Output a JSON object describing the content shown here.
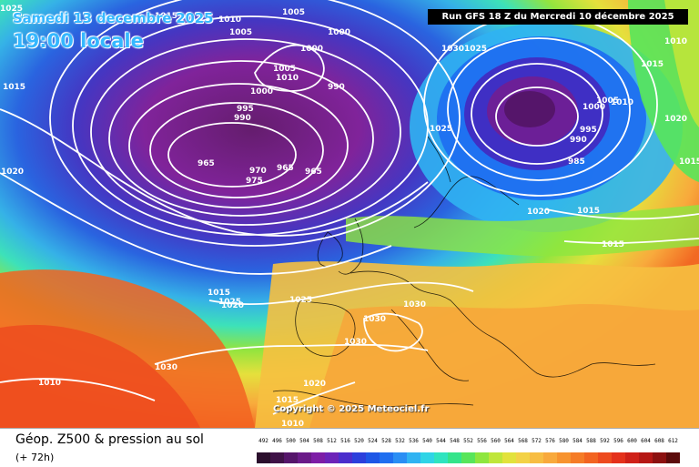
{
  "header": {
    "date_label": "Samedi 13 decembre 2025",
    "local_time": "19:00 locale",
    "run_label": "Run GFS 18 Z du Mercredi 10 décembre 2025"
  },
  "copyright": "Copyright © 2025 Meteociel.fr",
  "footer": {
    "title": "Géop. Z500 & pression au sol",
    "subtitle": "(+ 72h)"
  },
  "scale": {
    "values": [
      "492",
      "496",
      "500",
      "504",
      "508",
      "512",
      "516",
      "520",
      "524",
      "528",
      "532",
      "536",
      "540",
      "544",
      "548",
      "552",
      "556",
      "560",
      "564",
      "568",
      "572",
      "576",
      "580",
      "584",
      "588",
      "592",
      "596",
      "600",
      "604",
      "608",
      "612"
    ],
    "colors": [
      "#2b0f2d",
      "#3f1247",
      "#55156a",
      "#6a1a88",
      "#7d1da6",
      "#6c23b8",
      "#4a2dcc",
      "#2b3fdc",
      "#1d56e6",
      "#1f6ff0",
      "#2a8ef4",
      "#30b3f2",
      "#2fd4e6",
      "#2fe4bf",
      "#34e48a",
      "#58e55a",
      "#8ee63e",
      "#bfe63a",
      "#e2e23c",
      "#f3d246",
      "#f7bd43",
      "#f8a93c",
      "#f7932f",
      "#f57c27",
      "#f26421",
      "#ed4a1e",
      "#e4311b",
      "#cf2018",
      "#b51714",
      "#8c1110",
      "#5c0b0b"
    ]
  },
  "pressure_labels": [
    "1015",
    "1010",
    "1005",
    "1005",
    "1000",
    "1005",
    "1010",
    "1000",
    "990",
    "995",
    "990",
    "1000",
    "965",
    "970",
    "975",
    "965",
    "965",
    "1030",
    "1025",
    "1025",
    "1000",
    "1005",
    "1010",
    "995",
    "990",
    "985",
    "1025",
    "1015",
    "1010",
    "1015",
    "1020",
    "1020",
    "1015",
    "1015",
    "1015",
    "1020",
    "1025",
    "1030",
    "1030",
    "1030",
    "1025",
    "1030",
    "1020",
    "1015",
    "1010",
    "1020",
    "1015",
    "1010"
  ],
  "legend_note": ""
}
